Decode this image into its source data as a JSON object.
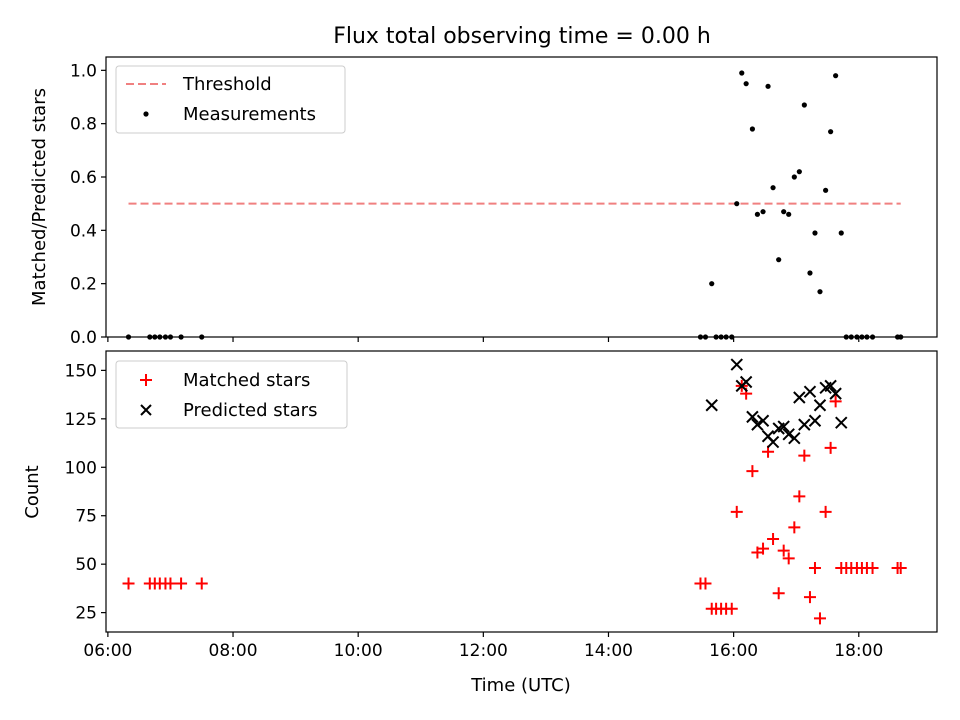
{
  "figure": {
    "title": "Flux total observing time = 0.00 h",
    "xlabel": "Time (UTC)"
  },
  "colors": {
    "threshold": "#f08080",
    "measurement": "#000000",
    "matched": "#ff0000",
    "predicted": "#000000"
  },
  "chart_data": [
    {
      "type": "scatter",
      "title": "Flux total observing time = 0.00 h",
      "xlabel": "",
      "ylabel": "Matched/Predicted stars",
      "x_is_time_hours": true,
      "xlim": [
        5.97,
        19.25
      ],
      "ylim": [
        0,
        1.05
      ],
      "xticks": [
        6,
        8,
        10,
        12,
        14,
        16,
        18
      ],
      "yticks": [
        0,
        0.2,
        0.4,
        0.6,
        0.8,
        1.0
      ],
      "ytick_labels": [
        "0.0",
        "0.2",
        "0.4",
        "0.6",
        "0.8",
        "1.0"
      ],
      "legend_position": "top-left",
      "series": [
        {
          "name": "Threshold",
          "kind": "line-dashed",
          "x": [
            6.33,
            18.67
          ],
          "y": [
            0.5,
            0.5
          ]
        },
        {
          "name": "Measurements",
          "kind": "dot",
          "x": [
            6.33,
            6.67,
            6.75,
            6.83,
            6.92,
            7.0,
            7.17,
            7.5,
            15.47,
            15.55,
            15.65,
            15.72,
            15.8,
            15.88,
            15.97,
            16.05,
            16.13,
            16.2,
            16.3,
            16.38,
            16.47,
            16.55,
            16.63,
            16.72,
            16.8,
            16.88,
            16.97,
            17.05,
            17.13,
            17.22,
            17.3,
            17.38,
            17.47,
            17.55,
            17.63,
            17.72,
            17.8,
            17.88,
            17.97,
            18.05,
            18.13,
            18.22,
            18.62,
            18.67
          ],
          "y": [
            0,
            0,
            0,
            0,
            0,
            0,
            0,
            0,
            0,
            0,
            0.2,
            0,
            0,
            0,
            0,
            0.5,
            0.99,
            0.95,
            0.78,
            0.46,
            0.47,
            0.94,
            0.56,
            0.29,
            0.47,
            0.46,
            0.6,
            0.62,
            0.87,
            0.24,
            0.39,
            0.17,
            0.55,
            0.77,
            0.98,
            0.39,
            0,
            0,
            0,
            0,
            0,
            0,
            0,
            0
          ]
        }
      ]
    },
    {
      "type": "scatter",
      "xlabel": "Time (UTC)",
      "ylabel": "Count",
      "x_is_time_hours": true,
      "xlim": [
        5.97,
        19.25
      ],
      "ylim": [
        15,
        160
      ],
      "xticks": [
        6,
        8,
        10,
        12,
        14,
        16,
        18
      ],
      "xtick_labels": [
        "06:00",
        "08:00",
        "10:00",
        "12:00",
        "14:00",
        "16:00",
        "18:00"
      ],
      "yticks": [
        25,
        50,
        75,
        100,
        125,
        150
      ],
      "legend_position": "top-left",
      "series": [
        {
          "name": "Matched stars",
          "kind": "plus",
          "x": [
            6.33,
            6.67,
            6.75,
            6.83,
            6.92,
            7.0,
            7.17,
            7.5,
            15.47,
            15.55,
            15.65,
            15.72,
            15.8,
            15.88,
            15.97,
            16.05,
            16.13,
            16.2,
            16.3,
            16.38,
            16.47,
            16.55,
            16.63,
            16.72,
            16.8,
            16.88,
            16.97,
            17.05,
            17.13,
            17.22,
            17.3,
            17.38,
            17.47,
            17.55,
            17.63,
            17.72,
            17.8,
            17.88,
            17.97,
            18.05,
            18.13,
            18.22,
            18.62,
            18.67
          ],
          "y": [
            40,
            40,
            40,
            40,
            40,
            40,
            40,
            40,
            40,
            40,
            27,
            27,
            27,
            27,
            27,
            77,
            142,
            138,
            98,
            56,
            58,
            108,
            63,
            35,
            57,
            53,
            69,
            85,
            106,
            33,
            48,
            22,
            77,
            110,
            134,
            48,
            48,
            48,
            48,
            48,
            48,
            48,
            48,
            48
          ]
        },
        {
          "name": "Predicted stars",
          "kind": "x",
          "x": [
            15.65,
            16.05,
            16.13,
            16.2,
            16.3,
            16.38,
            16.47,
            16.55,
            16.63,
            16.72,
            16.8,
            16.88,
            16.97,
            17.05,
            17.13,
            17.22,
            17.3,
            17.38,
            17.47,
            17.55,
            17.63,
            17.72
          ],
          "y": [
            132,
            153,
            142,
            144,
            126,
            122,
            124,
            116,
            113,
            120,
            121,
            117,
            115,
            136,
            122,
            139,
            124,
            132,
            141,
            142,
            138,
            123
          ]
        }
      ]
    }
  ]
}
